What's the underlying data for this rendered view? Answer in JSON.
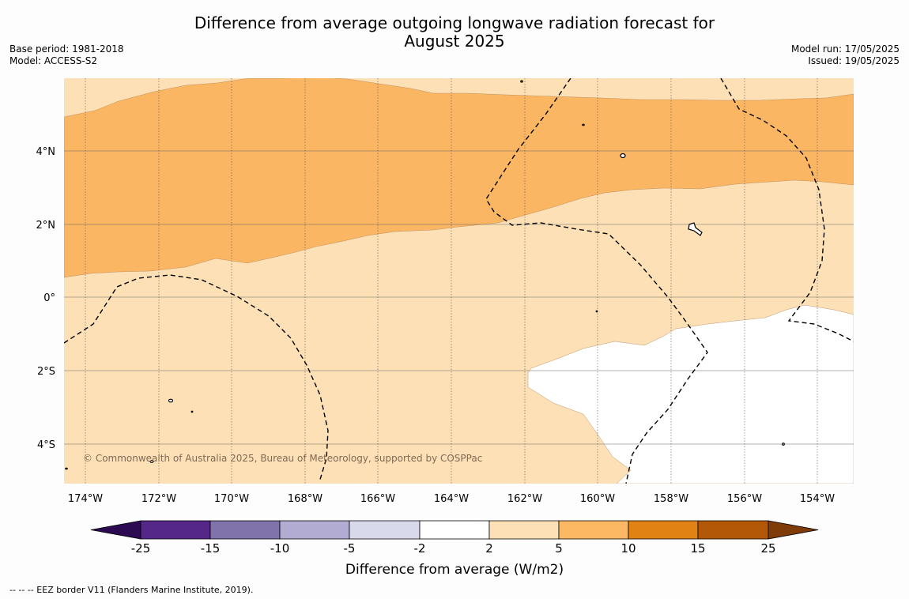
{
  "header": {
    "title_line1": "Difference from average outgoing longwave radiation forecast for",
    "title_line2": "August 2025",
    "base_period": "Base period: 1981-2018",
    "model": "Model: ACCESS-S2",
    "model_run": "Model run: 17/05/2025",
    "issued": "Issued: 19/05/2025"
  },
  "map": {
    "lat_labels": [
      "4°N",
      "2°N",
      "0°",
      "2°S",
      "4°S"
    ],
    "lon_labels": [
      "174°W",
      "172°W",
      "170°W",
      "168°W",
      "166°W",
      "164°W",
      "162°W",
      "160°W",
      "158°W",
      "156°W",
      "154°W"
    ],
    "credit": "© Commonwealth of Australia 2025, Bureau of Meteorology, supported by COSPPac",
    "fill_colors": {
      "near_average": "#ffffff",
      "light_orange": "#fde0b6",
      "orange": "#fbb663"
    }
  },
  "colorbar": {
    "title": "Difference from average (W/m2)",
    "tick_labels": [
      "-25",
      "-15",
      "-10",
      "-5",
      "-2",
      "2",
      "5",
      "10",
      "15",
      "25"
    ],
    "colors": [
      "#2d0b52",
      "#542788",
      "#8073ac",
      "#b2abd2",
      "#d8daeb",
      "#ffffff",
      "#fee0b6",
      "#fdb863",
      "#e08214",
      "#b35806",
      "#7f3b08"
    ]
  },
  "footer": {
    "eez_note": "--  --  -- EEZ border V11 (Flanders Marine Institute, 2019)."
  }
}
